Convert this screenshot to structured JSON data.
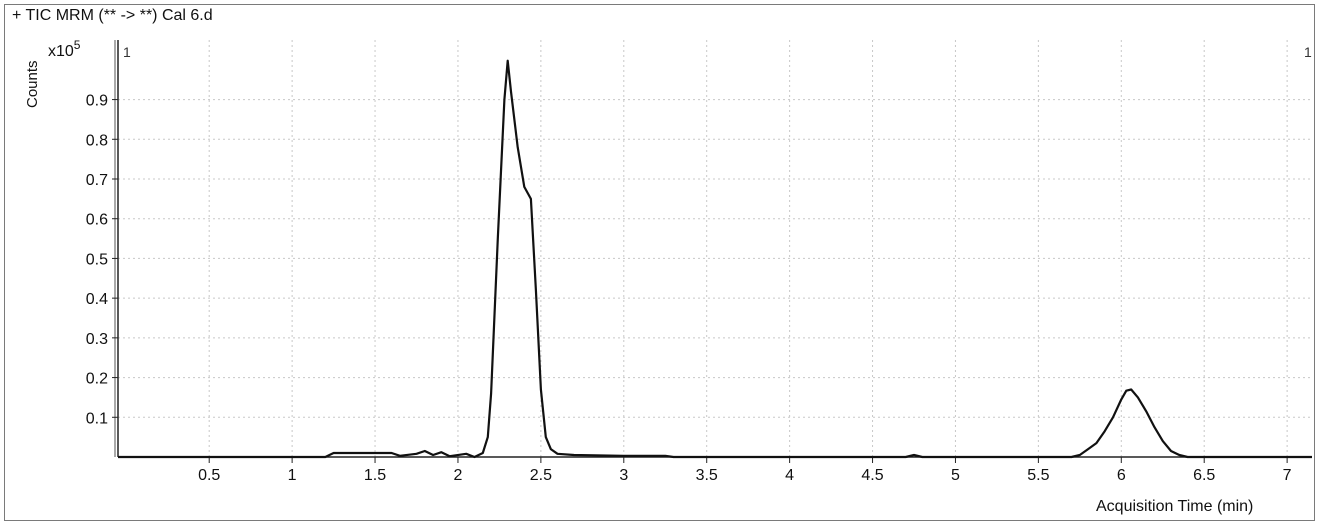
{
  "chart_data": {
    "type": "line",
    "title": "+ TIC MRM (** -> **) Cal 6.d",
    "ylabel": "Counts",
    "y_multiplier": "x10",
    "y_exponent": "5",
    "xlabel": "Acquisition Time (min)",
    "trace_marker_left": "1",
    "trace_marker_right": "1",
    "xlim": [
      -0.05,
      7.15
    ],
    "ylim": [
      0,
      1.05
    ],
    "x_ticks": [
      0.5,
      1,
      1.5,
      2,
      2.5,
      3,
      3.5,
      4,
      4.5,
      5,
      5.5,
      6,
      6.5,
      7
    ],
    "x_tick_labels": [
      "0.5",
      "1",
      "1.5",
      "2",
      "2.5",
      "3",
      "3.5",
      "4",
      "4.5",
      "5",
      "5.5",
      "6",
      "6.5",
      "7"
    ],
    "y_ticks": [
      0.1,
      0.2,
      0.3,
      0.4,
      0.5,
      0.6,
      0.7,
      0.8,
      0.9
    ],
    "y_tick_labels": [
      "0.1",
      "0.2",
      "0.3",
      "0.4",
      "0.5",
      "0.6",
      "0.7",
      "0.8",
      "0.9"
    ],
    "grid": true,
    "series": [
      {
        "line_color": "#111111",
        "x": [
          -0.05,
          1.2,
          1.25,
          1.6,
          1.65,
          1.75,
          1.8,
          1.85,
          1.9,
          1.95,
          2.05,
          2.1,
          2.15,
          2.18,
          2.2,
          2.24,
          2.28,
          2.3,
          2.32,
          2.36,
          2.4,
          2.44,
          2.47,
          2.5,
          2.53,
          2.56,
          2.6,
          2.7,
          3.0,
          3.25,
          3.3,
          4.7,
          4.75,
          4.8,
          4.85,
          5.7,
          5.75,
          5.8,
          5.85,
          5.9,
          5.95,
          6.0,
          6.03,
          6.06,
          6.1,
          6.15,
          6.2,
          6.25,
          6.3,
          6.35,
          6.4,
          7.15
        ],
        "y": [
          0.0,
          0.0,
          0.01,
          0.01,
          0.003,
          0.008,
          0.015,
          0.005,
          0.012,
          0.002,
          0.008,
          0.0,
          0.01,
          0.05,
          0.16,
          0.55,
          0.9,
          0.998,
          0.92,
          0.78,
          0.68,
          0.65,
          0.42,
          0.17,
          0.05,
          0.02,
          0.008,
          0.005,
          0.003,
          0.003,
          0.0,
          0.0,
          0.005,
          0.0,
          0.0,
          0.0,
          0.005,
          0.02,
          0.035,
          0.065,
          0.1,
          0.145,
          0.167,
          0.17,
          0.15,
          0.115,
          0.075,
          0.04,
          0.015,
          0.005,
          0.0,
          0.0
        ]
      }
    ]
  }
}
